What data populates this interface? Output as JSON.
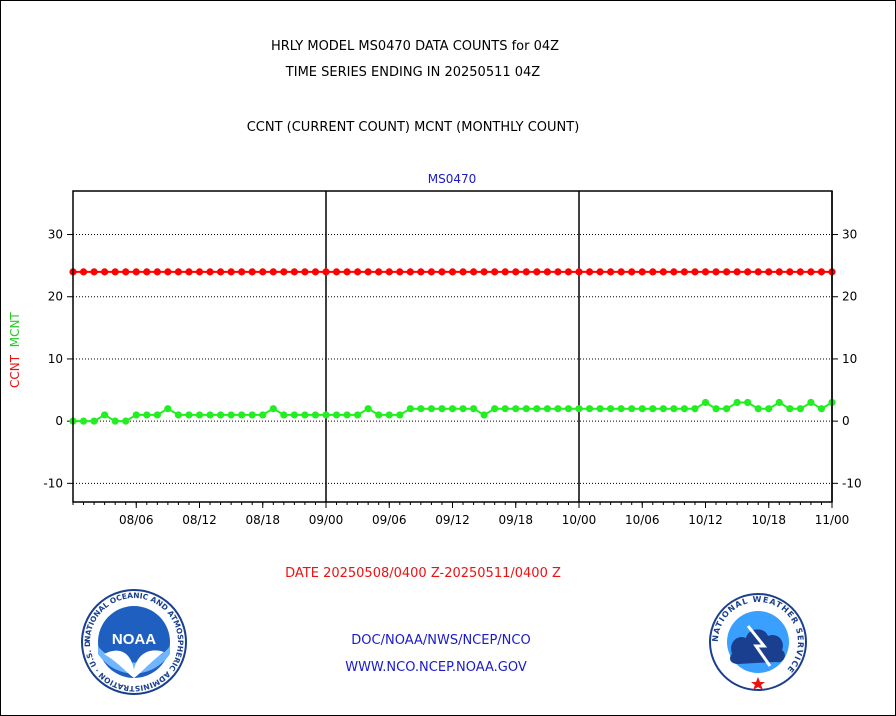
{
  "header": {
    "line1": "HRLY MODEL MS0470 DATA COUNTS for 04Z",
    "line2": "TIME SERIES ENDING IN 20250511 04Z",
    "line3": "CCNT (CURRENT COUNT) MCNT (MONTHLY COUNT)"
  },
  "footer": {
    "date_range": "DATE 20250508/0400 Z-20250511/0400 Z",
    "org_path": "DOC/NOAA/NWS/NCEP/NCO",
    "website": "WWW.NCO.NCEP.NOAA.GOV"
  },
  "logos": {
    "noaa_text": "NOAA",
    "noaa_ring": "NATIONAL OCEANIC AND ATMOSPHERIC ADMINISTRATION · U.S. DEPARTMENT OF COMMERCE",
    "nws_ring": "NATIONAL WEATHER SERVICE"
  },
  "colors": {
    "ccnt": "#ff0000",
    "mcnt": "#22ee22",
    "title_blue": "#1a1acc",
    "date_red": "#ee1111"
  },
  "chart_data": {
    "type": "line",
    "title": "MS0470",
    "ylabel_parts": [
      {
        "text": "CCNT",
        "color": "#ee1111"
      },
      {
        "text": "MCNT",
        "color": "#22cc22"
      }
    ],
    "x_tick_labels": [
      "08/06",
      "08/12",
      "08/18",
      "09/00",
      "09/06",
      "09/12",
      "09/18",
      "10/00",
      "10/06",
      "10/12",
      "10/18",
      "11/00"
    ],
    "x_tick_hours": [
      6,
      12,
      18,
      24,
      30,
      36,
      42,
      48,
      54,
      60,
      66,
      72
    ],
    "day_boundary_hours": [
      24,
      48,
      72
    ],
    "xlim_hours": [
      0,
      72
    ],
    "x_note": "hours after 20250508/0400 Z; tick labels are DD/HH",
    "yticks": [
      -10,
      0,
      10,
      20,
      30
    ],
    "ylim": [
      -13,
      37
    ],
    "grid": true,
    "series": [
      {
        "name": "CCNT",
        "color": "#ff0000",
        "x_start": 0,
        "x_step": 1,
        "values": [
          24,
          24,
          24,
          24,
          24,
          24,
          24,
          24,
          24,
          24,
          24,
          24,
          24,
          24,
          24,
          24,
          24,
          24,
          24,
          24,
          24,
          24,
          24,
          24,
          24,
          24,
          24,
          24,
          24,
          24,
          24,
          24,
          24,
          24,
          24,
          24,
          24,
          24,
          24,
          24,
          24,
          24,
          24,
          24,
          24,
          24,
          24,
          24,
          24,
          24,
          24,
          24,
          24,
          24,
          24,
          24,
          24,
          24,
          24,
          24,
          24,
          24,
          24,
          24,
          24,
          24,
          24,
          24,
          24,
          24,
          24,
          24,
          24,
          24
        ]
      },
      {
        "name": "MCNT",
        "color": "#22ee22",
        "x_start": 0,
        "x_step": 1,
        "values": [
          0,
          0,
          0,
          1,
          0,
          0,
          1,
          1,
          1,
          2,
          1,
          1,
          1,
          1,
          1,
          1,
          1,
          1,
          1,
          2,
          1,
          1,
          1,
          1,
          1,
          1,
          1,
          1,
          2,
          1,
          1,
          1,
          2,
          2,
          2,
          2,
          2,
          2,
          2,
          1,
          2,
          2,
          2,
          2,
          2,
          2,
          2,
          2,
          2,
          2,
          2,
          2,
          2,
          2,
          2,
          2,
          2,
          2,
          2,
          2,
          3,
          2,
          2,
          3,
          3,
          2,
          2,
          3,
          2,
          2,
          3,
          2,
          3,
          3,
          2,
          2
        ]
      }
    ]
  }
}
